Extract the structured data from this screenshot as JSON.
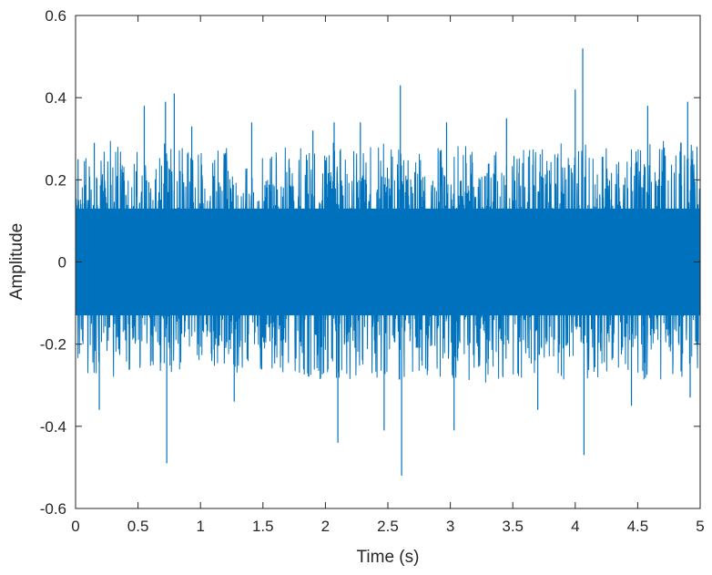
{
  "chart_data": {
    "type": "line",
    "title": "",
    "xlabel": "Time (s)",
    "ylabel": "Amplitude",
    "xlim": [
      0,
      5
    ],
    "ylim": [
      -0.6,
      0.6
    ],
    "xticks": [
      0,
      0.5,
      1,
      1.5,
      2,
      2.5,
      3,
      3.5,
      4,
      4.5,
      5
    ],
    "xtick_labels": [
      "0",
      "0.5",
      "1",
      "1.5",
      "2",
      "2.5",
      "3",
      "3.5",
      "4",
      "4.5",
      "5"
    ],
    "yticks": [
      -0.6,
      -0.4,
      -0.2,
      0,
      0.2,
      0.4,
      0.6
    ],
    "ytick_labels": [
      "-0.6",
      "-0.4",
      "-0.2",
      "0",
      "0.2",
      "0.4",
      "0.6"
    ],
    "grid": false,
    "line_color": "#0072BD",
    "series": [
      {
        "description_note_excluded": true,
        "envelope": {
          "x": [
            0,
            0.25,
            0.5,
            0.75,
            1,
            1.25,
            1.5,
            1.75,
            2,
            2.25,
            2.5,
            2.75,
            3,
            3.25,
            3.5,
            3.75,
            4,
            4.25,
            4.5,
            4.75,
            5
          ],
          "upper": [
            0.2,
            0.22,
            0.21,
            0.22,
            0.2,
            0.21,
            0.2,
            0.21,
            0.22,
            0.21,
            0.22,
            0.21,
            0.21,
            0.22,
            0.21,
            0.21,
            0.22,
            0.21,
            0.21,
            0.22,
            0.21
          ],
          "lower": [
            -0.2,
            -0.21,
            -0.2,
            -0.21,
            -0.2,
            -0.21,
            -0.2,
            -0.21,
            -0.22,
            -0.21,
            -0.22,
            -0.21,
            -0.21,
            -0.22,
            -0.21,
            -0.21,
            -0.22,
            -0.21,
            -0.21,
            -0.22,
            -0.21
          ]
        },
        "peaks": [
          {
            "x": 0.02,
            "y": 0.25
          },
          {
            "x": 0.15,
            "y": 0.29
          },
          {
            "x": 0.19,
            "y": -0.36
          },
          {
            "x": 0.55,
            "y": 0.38
          },
          {
            "x": 0.72,
            "y": 0.39
          },
          {
            "x": 0.73,
            "y": -0.49
          },
          {
            "x": 0.79,
            "y": 0.41
          },
          {
            "x": 0.93,
            "y": 0.33
          },
          {
            "x": 1.27,
            "y": -0.34
          },
          {
            "x": 1.41,
            "y": 0.34
          },
          {
            "x": 1.9,
            "y": 0.32
          },
          {
            "x": 2.07,
            "y": 0.34
          },
          {
            "x": 2.1,
            "y": -0.44
          },
          {
            "x": 2.28,
            "y": 0.34
          },
          {
            "x": 2.47,
            "y": -0.41
          },
          {
            "x": 2.6,
            "y": 0.43
          },
          {
            "x": 2.61,
            "y": -0.52
          },
          {
            "x": 2.97,
            "y": 0.34
          },
          {
            "x": 3.03,
            "y": -0.41
          },
          {
            "x": 3.45,
            "y": 0.35
          },
          {
            "x": 3.7,
            "y": -0.36
          },
          {
            "x": 4.0,
            "y": 0.42
          },
          {
            "x": 4.06,
            "y": 0.52
          },
          {
            "x": 4.07,
            "y": -0.47
          },
          {
            "x": 4.45,
            "y": -0.35
          },
          {
            "x": 4.58,
            "y": 0.38
          },
          {
            "x": 4.9,
            "y": 0.39
          },
          {
            "x": 4.92,
            "y": -0.33
          }
        ]
      }
    ]
  }
}
